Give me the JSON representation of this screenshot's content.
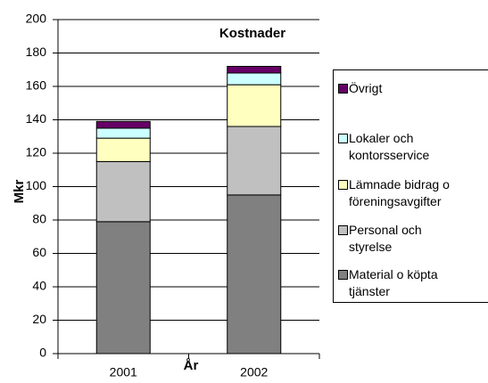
{
  "chart_data": {
    "type": "stacked_bar",
    "title": "Kostnader",
    "x_label": "År",
    "y_label": "Mkr",
    "categories": [
      "2001",
      "2002"
    ],
    "series": [
      {
        "name": "Material o köpta tjänster",
        "color": "#808080",
        "values": [
          79,
          95
        ]
      },
      {
        "name": "Personal och styrelse",
        "color": "#c0c0c0",
        "values": [
          36,
          41
        ]
      },
      {
        "name": "Lämnade bidrag o föreningsavgifter",
        "color": "#ffffc0",
        "values": [
          14,
          25
        ]
      },
      {
        "name": "Lokaler och kontorsservice",
        "color": "#ccffff",
        "values": [
          6,
          7
        ]
      },
      {
        "name": "Övrigt",
        "color": "#660066",
        "values": [
          4,
          4
        ]
      }
    ],
    "ylim": [
      0,
      200
    ],
    "yticks": [
      0,
      20,
      40,
      60,
      80,
      100,
      120,
      140,
      160,
      180,
      200
    ],
    "grid": true,
    "legend": "right"
  }
}
